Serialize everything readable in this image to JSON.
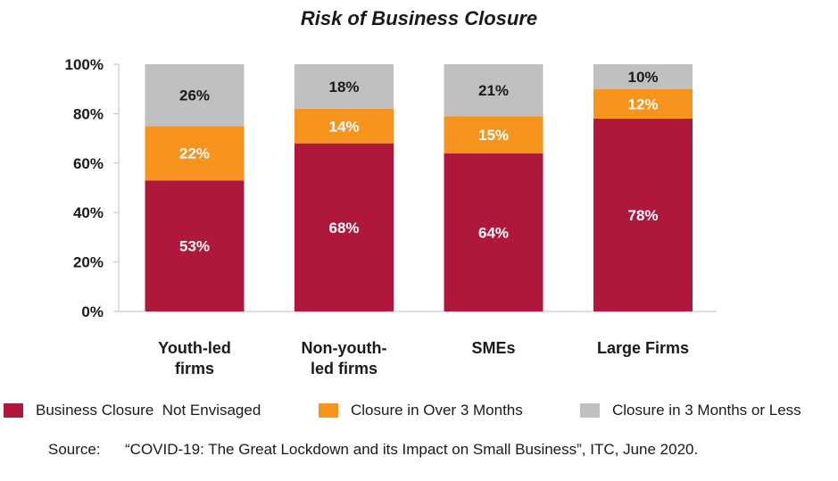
{
  "chart_data": {
    "type": "bar",
    "stacked": true,
    "title": "Risk of Business Closure",
    "categories": [
      [
        "Youth-led",
        "firms"
      ],
      [
        "Non-youth-",
        "led firms"
      ],
      [
        "SMEs"
      ],
      [
        "Large Firms"
      ]
    ],
    "series": [
      {
        "name": "Business Closure  Not Envisaged",
        "color": "#b0183b",
        "label_color": "#ffffff",
        "values": [
          53,
          68,
          64,
          78
        ]
      },
      {
        "name": "Closure in Over 3 Months",
        "color": "#f7941d",
        "label_color": "#ffffff",
        "values": [
          22,
          14,
          15,
          12
        ]
      },
      {
        "name": "Closure in 3 Months or Less",
        "color": "#c0c0c0",
        "label_color": "#1a1a1a",
        "values": [
          26,
          18,
          21,
          10
        ]
      }
    ],
    "ylim": [
      0,
      100
    ],
    "yticks": [
      "0%",
      "20%",
      "40%",
      "60%",
      "80%",
      "100%"
    ],
    "ytick_values": [
      0,
      20,
      40,
      60,
      80,
      100
    ],
    "value_suffix": "%",
    "grid": false,
    "legend_position": "bottom"
  },
  "source": {
    "label": "Source:",
    "text": "“COVID-19: The Great Lockdown and its Impact on Small Business”, ITC, June 2020."
  }
}
